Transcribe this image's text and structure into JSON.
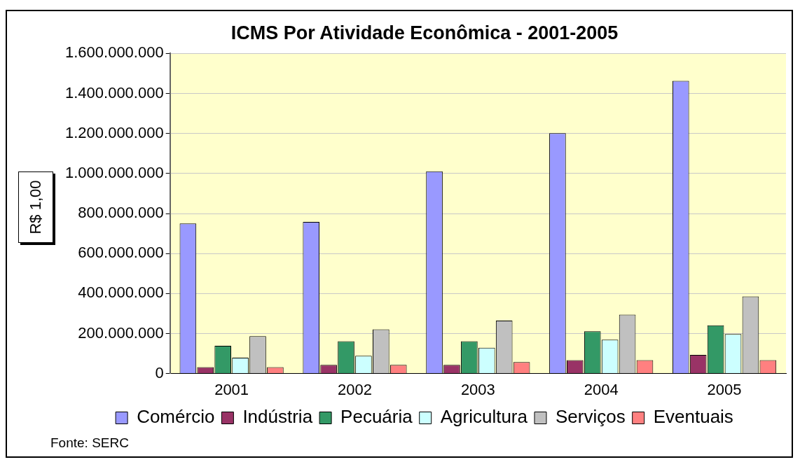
{
  "chart_data": {
    "type": "bar",
    "title": "ICMS Por Atividade Econômica - 2001-2005",
    "ylabel": "R$ 1,00",
    "categories": [
      "2001",
      "2002",
      "2003",
      "2004",
      "2005"
    ],
    "series": [
      {
        "name": "Comércio",
        "color": "#9999ff",
        "values": [
          750000000,
          758000000,
          1011000000,
          1202000000,
          1463000000
        ]
      },
      {
        "name": "Indústria",
        "color": "#993366",
        "values": [
          32000000,
          43000000,
          43000000,
          67000000,
          93000000
        ]
      },
      {
        "name": "Pecuária",
        "color": "#339966",
        "values": [
          139000000,
          161000000,
          161000000,
          211000000,
          241000000
        ]
      },
      {
        "name": "Agricultura",
        "color": "#ccffff",
        "values": [
          79000000,
          89000000,
          129000000,
          169000000,
          197000000
        ]
      },
      {
        "name": "Serviços",
        "color": "#c0c0c0",
        "values": [
          187000000,
          221000000,
          265000000,
          294000000,
          385000000
        ]
      },
      {
        "name": "Eventuais",
        "color": "#ff8080",
        "values": [
          32000000,
          43000000,
          57000000,
          67000000,
          67000000
        ]
      }
    ],
    "ylim": [
      0,
      1600000000
    ],
    "yticks": [
      0,
      {
        "value": 200000000,
        "label": "200.000.000"
      },
      {
        "value": 400000000,
        "label": "400.000.000"
      },
      {
        "value": 600000000,
        "label": "600.000.000"
      },
      {
        "value": 800000000,
        "label": "800.000.000"
      },
      {
        "value": 1000000000,
        "label": "1.000.000.000"
      },
      {
        "value": 1200000000,
        "label": "1.200.000.000"
      },
      {
        "value": 1400000000,
        "label": "1.400.000.000"
      },
      {
        "value": 1600000000,
        "label": "1.600.000.000"
      }
    ],
    "grid": "y",
    "legend": "bottom",
    "annotations": [
      "Fonte: SERC"
    ]
  }
}
